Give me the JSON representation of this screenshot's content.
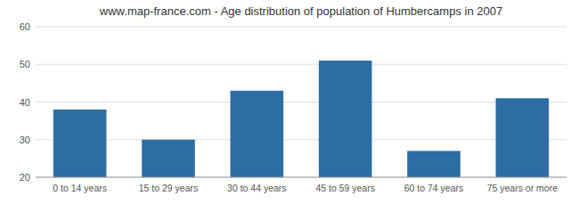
{
  "chart_data": {
    "type": "bar",
    "title": "www.map-france.com - Age distribution of population of Humbercamps in 2007",
    "categories": [
      "0 to 14 years",
      "15 to 29 years",
      "30 to 44 years",
      "45 to 59 years",
      "60 to 74 years",
      "75 years or more"
    ],
    "values": [
      38,
      30,
      43,
      51,
      27,
      41
    ],
    "color": "#2e6da4",
    "ylim": [
      20,
      60
    ],
    "yticks": [
      20,
      30,
      40,
      50,
      60
    ],
    "grid": true
  }
}
